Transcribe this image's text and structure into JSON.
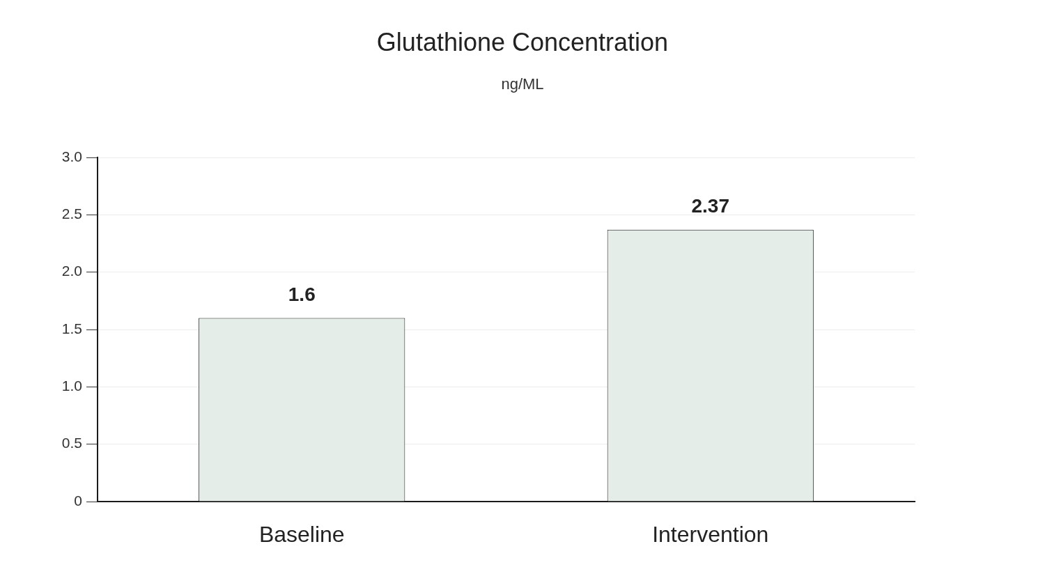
{
  "chart_data": {
    "type": "bar",
    "title": "Glutathione Concentration",
    "subtitle": "ng/ML",
    "categories": [
      "Baseline",
      "Intervention"
    ],
    "values": [
      1.6,
      2.37
    ],
    "color": "#e4ede8",
    "ylim": [
      0,
      3
    ],
    "yticks": [
      0,
      {
        "value": 0.5,
        "label": "0.5"
      },
      {
        "value": 1,
        "label": "1.0"
      },
      {
        "value": 1.5,
        "label": "1.5"
      },
      {
        "value": 2,
        "label": "2.0"
      },
      {
        "value": 2.5,
        "label": "2.5"
      },
      {
        "value": 3,
        "label": "3.0"
      }
    ],
    "grid": "y",
    "legend": false,
    "data_labels": true
  }
}
